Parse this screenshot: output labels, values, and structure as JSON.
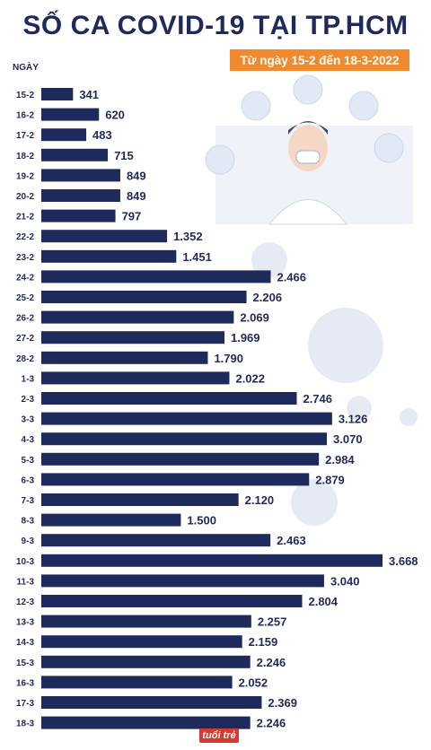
{
  "title": "SỐ CA COVID-19 TẠI TP.HCM",
  "subtitle": "Từ ngày 15-2 đến 18-3-2022",
  "axis_title": "NGÀY",
  "logo_text": "tuổi trẻ",
  "colors": {
    "bar": "#1f2a5c",
    "badge": "#f08a2e",
    "text": "#1f2a5c"
  },
  "chart_data": {
    "type": "bar",
    "orientation": "horizontal",
    "categories": [
      "15-2",
      "16-2",
      "17-2",
      "18-2",
      "19-2",
      "20-2",
      "21-2",
      "22-2",
      "23-2",
      "24-2",
      "25-2",
      "26-2",
      "27-2",
      "28-2",
      "1-3",
      "2-3",
      "3-3",
      "4-3",
      "5-3",
      "6-3",
      "7-3",
      "8-3",
      "9-3",
      "10-3",
      "11-3",
      "12-3",
      "13-3",
      "14-3",
      "15-3",
      "16-3",
      "17-3",
      "18-3"
    ],
    "values": [
      341,
      620,
      483,
      715,
      849,
      849,
      797,
      1352,
      1451,
      2466,
      2206,
      2069,
      1969,
      1790,
      2022,
      2746,
      3126,
      3070,
      2984,
      2879,
      2120,
      1500,
      2463,
      3668,
      3040,
      2804,
      2257,
      2159,
      2246,
      2052,
      2369,
      2246
    ],
    "value_labels": [
      "341",
      "620",
      "483",
      "715",
      "849",
      "849",
      "797",
      "1.352",
      "1.451",
      "2.466",
      "2.206",
      "2.069",
      "1.969",
      "1.790",
      "2.022",
      "2.746",
      "3.126",
      "3.070",
      "2.984",
      "2.879",
      "2.120",
      "1.500",
      "2.463",
      "3.668",
      "3.040",
      "2.804",
      "2.257",
      "2.159",
      "2.246",
      "2.052",
      "2.369",
      "2.246"
    ],
    "xlim": [
      0,
      3668
    ]
  }
}
